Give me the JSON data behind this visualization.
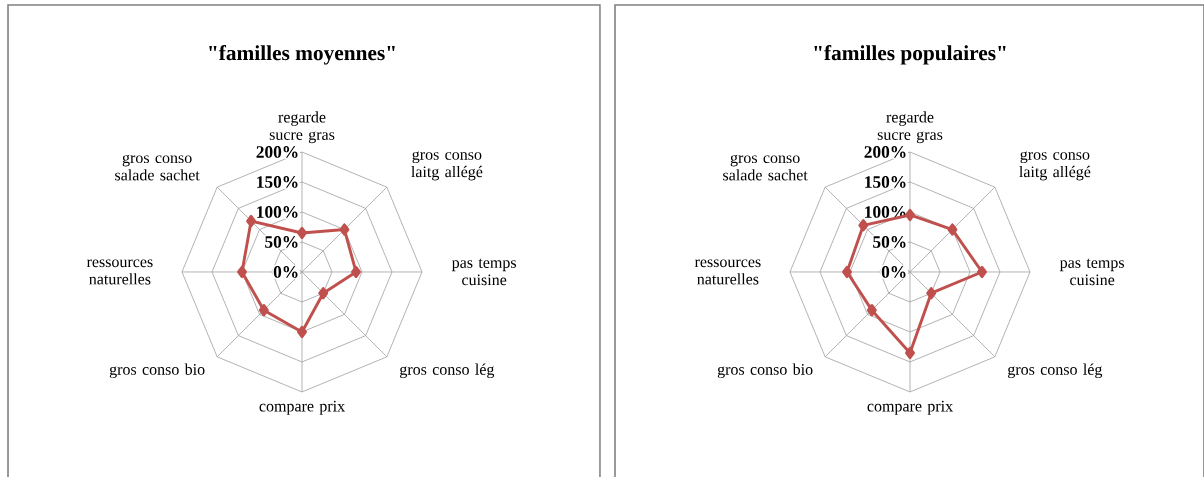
{
  "chart_data": [
    {
      "type": "radar",
      "title": "\"familles moyennes\"",
      "categories": [
        "regarde sucre gras",
        "gros conso laitg allégé",
        "pas temps cuisine",
        "gros conso lég",
        "compare prix",
        "gros conso bio",
        "ressources naturelles",
        "gros conso salade sachet"
      ],
      "series": [
        {
          "color": "#c0504d",
          "values": [
            65,
            100,
            90,
            50,
            100,
            90,
            100,
            120
          ]
        }
      ],
      "ylim": [
        0,
        200
      ],
      "yticks": [
        {
          "value": 0,
          "label": "0%"
        },
        {
          "value": 50,
          "label": "50%"
        },
        {
          "value": 100,
          "label": "100%"
        },
        {
          "value": 150,
          "label": "150%"
        },
        {
          "value": 200,
          "label": "200%"
        }
      ],
      "grid": true,
      "marker": "diamond"
    },
    {
      "type": "radar",
      "title": "\"familles populaires\"",
      "categories": [
        "regarde sucre gras",
        "gros conso laitg allégé",
        "pas temps cuisine",
        "gros conso lég",
        "compare prix",
        "gros conso bio",
        "ressources naturelles",
        "gros conso salade sachet"
      ],
      "series": [
        {
          "color": "#c0504d",
          "values": [
            95,
            100,
            120,
            50,
            135,
            90,
            105,
            110
          ]
        }
      ],
      "ylim": [
        0,
        200
      ],
      "yticks": [
        {
          "value": 0,
          "label": "0%"
        },
        {
          "value": 50,
          "label": "50%"
        },
        {
          "value": 100,
          "label": "100%"
        },
        {
          "value": 150,
          "label": "150%"
        },
        {
          "value": 200,
          "label": "200%"
        }
      ],
      "grid": true,
      "marker": "diamond"
    }
  ]
}
